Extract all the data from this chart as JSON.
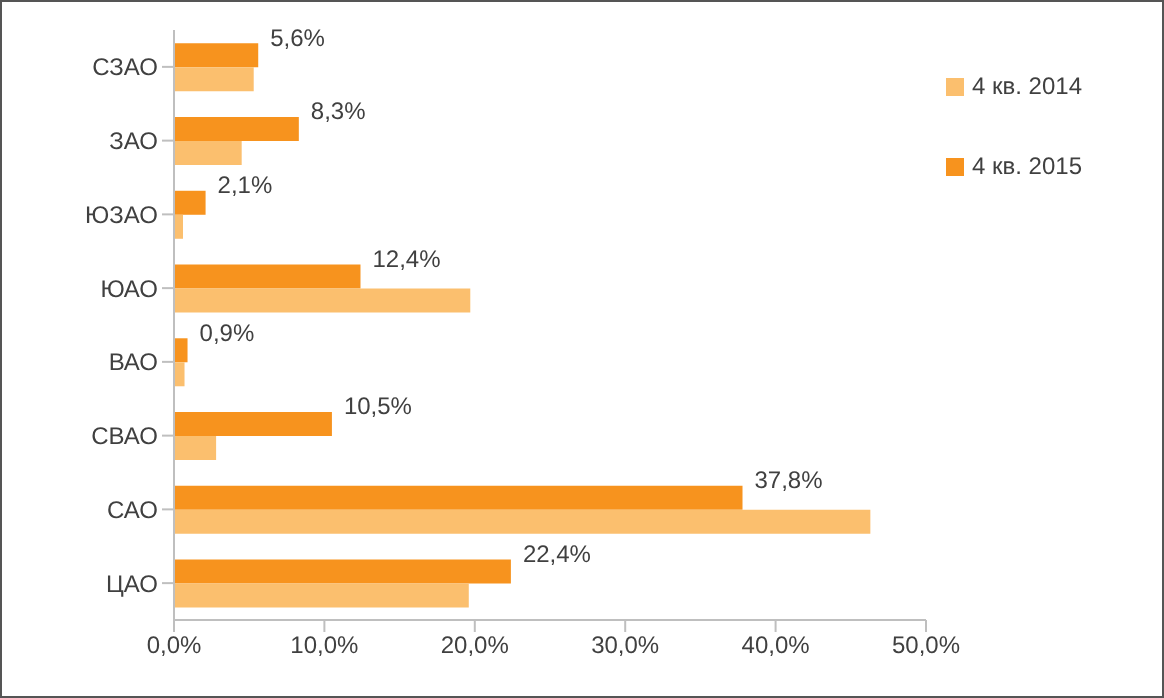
{
  "chart_data": {
    "type": "bar",
    "orientation": "horizontal",
    "categories": [
      "СЗАО",
      "ЗАО",
      "ЮЗАО",
      "ЮАО",
      "ВАО",
      "СВАО",
      "САО",
      "ЦАО"
    ],
    "series": [
      {
        "name": "4 кв. 2015",
        "color": "#f7931e",
        "values": [
          5.6,
          8.3,
          2.1,
          12.4,
          0.9,
          10.5,
          37.8,
          22.4
        ],
        "value_labels": [
          "5,6%",
          "8,3%",
          "2,1%",
          "12,4%",
          "0,9%",
          "10,5%",
          "37,8%",
          "22,4%"
        ]
      },
      {
        "name": "4 кв. 2014",
        "color": "#fbbf6e",
        "values": [
          5.3,
          4.5,
          0.6,
          19.7,
          0.7,
          2.8,
          46.3,
          19.6
        ]
      }
    ],
    "xlim": [
      0,
      50
    ],
    "xticks": [
      {
        "value": 0,
        "label": "0,0%"
      },
      {
        "value": 10,
        "label": "10,0%"
      },
      {
        "value": 20,
        "label": "20,0%"
      },
      {
        "value": 30,
        "label": "30,0%"
      },
      {
        "value": 40,
        "label": "40,0%"
      },
      {
        "value": 50,
        "label": "50,0%"
      }
    ],
    "grid": false,
    "legend": "top right"
  }
}
